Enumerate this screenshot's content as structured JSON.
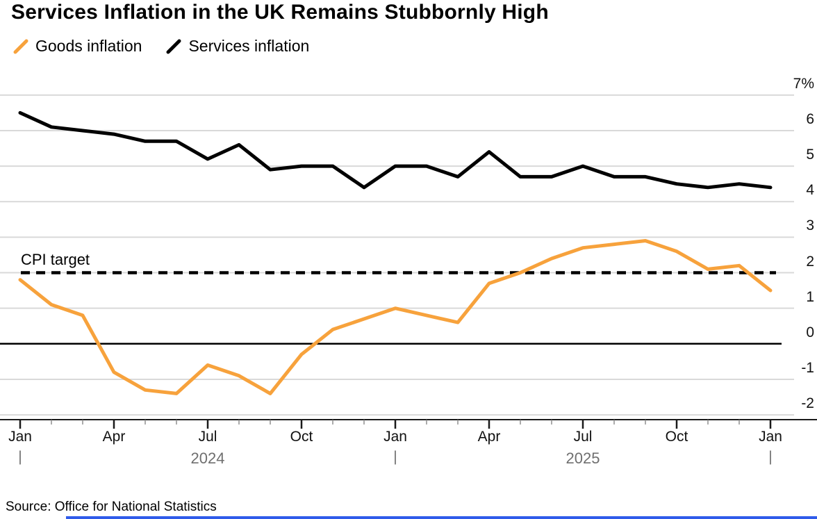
{
  "title": "Services Inflation in the UK Remains Stubbornly High",
  "legend": [
    {
      "label": "Goods inflation",
      "color": "#f7a23c"
    },
    {
      "label": "Services inflation",
      "color": "#000000"
    }
  ],
  "annotation": {
    "cpi_target_label": "CPI target"
  },
  "source": "Source: Office for National Statistics",
  "footer": {
    "accent_color": "#2f5bea"
  },
  "chart_data": {
    "type": "line",
    "title": "Services Inflation in the UK Remains Stubbornly High",
    "x": [
      "Jan 2024",
      "Feb 2024",
      "Mar 2024",
      "Apr 2024",
      "May 2024",
      "Jun 2024",
      "Jul 2024",
      "Aug 2024",
      "Sep 2024",
      "Oct 2024",
      "Nov 2024",
      "Dec 2024",
      "Jan 2025",
      "Feb 2025",
      "Mar 2025",
      "Apr 2025",
      "May 2025",
      "Jun 2025",
      "Jul 2025",
      "Aug 2025",
      "Sep 2025",
      "Oct 2025",
      "Nov 2025",
      "Dec 2025",
      "Jan 2026"
    ],
    "series": [
      {
        "name": "Goods inflation",
        "color": "#f7a23c",
        "values": [
          1.8,
          1.1,
          0.8,
          -0.8,
          -1.3,
          -1.4,
          -0.6,
          -0.9,
          -1.4,
          -0.3,
          0.4,
          0.7,
          1.0,
          0.8,
          0.6,
          1.7,
          2.0,
          2.4,
          2.7,
          2.8,
          2.9,
          2.6,
          2.1,
          2.2,
          1.5
        ]
      },
      {
        "name": "Services inflation",
        "color": "#000000",
        "values": [
          6.5,
          6.1,
          6.0,
          5.9,
          5.7,
          5.7,
          5.2,
          5.6,
          4.9,
          5.0,
          5.0,
          4.4,
          5.0,
          5.0,
          4.7,
          5.4,
          4.7,
          4.7,
          5.0,
          4.7,
          4.7,
          4.5,
          4.4,
          4.5,
          4.4
        ]
      }
    ],
    "y_ticks": [
      {
        "label": "7%",
        "value": 7
      },
      {
        "label": "6",
        "value": 6
      },
      {
        "label": "5",
        "value": 5
      },
      {
        "label": "4",
        "value": 4
      },
      {
        "label": "3",
        "value": 3
      },
      {
        "label": "2",
        "value": 2
      },
      {
        "label": "1",
        "value": 1
      },
      {
        "label": "0",
        "value": 0
      },
      {
        "label": "-1",
        "value": -1
      },
      {
        "label": "-2",
        "value": -2
      }
    ],
    "ylim": [
      -2.6,
      7.2
    ],
    "x_tick_month_labels": [
      "Jan",
      "Apr",
      "Jul",
      "Oct",
      "Jan",
      "Apr",
      "Jul",
      "Oct",
      "Jan"
    ],
    "year_markers": [
      {
        "label": "2024",
        "start_index": 0,
        "end_index": 12
      },
      {
        "label": "2025",
        "start_index": 12,
        "end_index": 24
      }
    ],
    "reference_lines": [
      {
        "label": "CPI target",
        "value": 2,
        "style": "dashed",
        "color": "#000000"
      },
      {
        "label": "zero",
        "value": 0,
        "style": "solid",
        "color": "#000000"
      }
    ],
    "grid": "horizontal",
    "legend_position": "top-left",
    "y_axis_position": "right"
  }
}
